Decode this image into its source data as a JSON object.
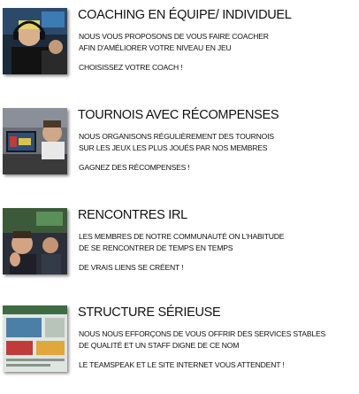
{
  "features": [
    {
      "title": "COACHING EN ÉQUIPE/ INDIVIDUEL",
      "desc_line1": "NOUS VOUS PROPOSONS DE VOUS FAIRE COACHER",
      "desc_line2": "AFIN D'AMÉLIORER VOTRE NIVEAU EN JEU",
      "cta": "CHOISISSEZ VOTRE COACH !"
    },
    {
      "title": "TOURNOIS AVEC RÉCOMPENSES",
      "desc_line1": "NOUS ORGANISONS RÉGULIÈREMENT DES TOURNOIS",
      "desc_line2": "SUR LES JEUX LES PLUS JOUÉS PAR NOS MEMBRES",
      "cta": "GAGNEZ DES RÉCOMPENSES !"
    },
    {
      "title": "RENCONTRES IRL",
      "desc_line1": "LES MEMBRES DE NOTRE COMMUNAUTÉ ON L'HABITUDE",
      "desc_line2": "DE SE RENCONTRER DE TEMPS EN TEMPS",
      "cta": "DE VRAIS LIENS SE CRÉENT !"
    },
    {
      "title": "STRUCTURE SÉRIEUSE",
      "desc_line1": "NOUS NOUS EFFORÇONS DE VOUS OFFRIR DES SERVICES STABLES",
      "desc_line2": "DE QUALITÉ ET UN STAFF DIGNE DE CE NOM",
      "cta": "LE TEAMSPEAK ET LE SITE INTERNET VOUS ATTENDENT !"
    }
  ]
}
